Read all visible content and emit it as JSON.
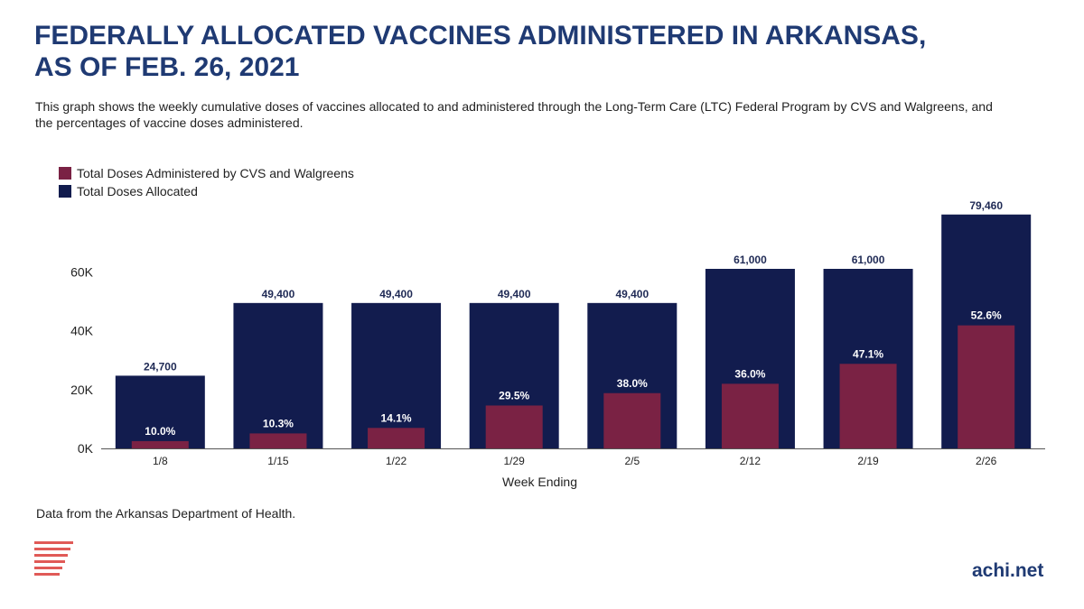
{
  "title_line1": "FEDERALLY ALLOCATED VACCINES ADMINISTERED IN ARKANSAS,",
  "title_line2": "AS OF FEB. 26, 2021",
  "subtitle": "This graph shows the weekly cumulative doses of vaccines allocated to and administered through the Long-Term Care (LTC) Federal Program by CVS and Walgreens, and the percentages of vaccine doses administered.",
  "source_note": "Data from the Arkansas Department of Health.",
  "brand": "achi.net",
  "colors": {
    "allocated": "#121c4e",
    "administered": "#7a2244",
    "title": "#1f3a73",
    "logo": "#e05a57"
  },
  "chart_data": {
    "type": "bar",
    "xlabel": "Week Ending",
    "ylabel": "",
    "categories": [
      "1/8",
      "1/15",
      "1/22",
      "1/29",
      "2/5",
      "2/12",
      "2/19",
      "2/26"
    ],
    "ylim": [
      0,
      80000
    ],
    "yticks": [
      0,
      20000,
      40000,
      60000
    ],
    "ytick_labels": [
      "0K",
      "20K",
      "40K",
      "60K"
    ],
    "grid": false,
    "legend_position": "top-left",
    "series": [
      {
        "name": "Total Doses Administered by CVS and Walgreens",
        "values": [
          2470,
          5088,
          6965,
          14573,
          18772,
          21960,
          28731,
          41796
        ],
        "data_labels": [
          "10.0%",
          "10.3%",
          "14.1%",
          "29.5%",
          "38.0%",
          "36.0%",
          "47.1%",
          "52.6%"
        ]
      },
      {
        "name": "Total Doses Allocated",
        "values": [
          24700,
          49400,
          49400,
          49400,
          49400,
          61000,
          61000,
          79460
        ],
        "data_labels": [
          "24,700",
          "49,400",
          "49,400",
          "49,400",
          "49,400",
          "61,000",
          "61,000",
          "79,460"
        ]
      }
    ]
  }
}
